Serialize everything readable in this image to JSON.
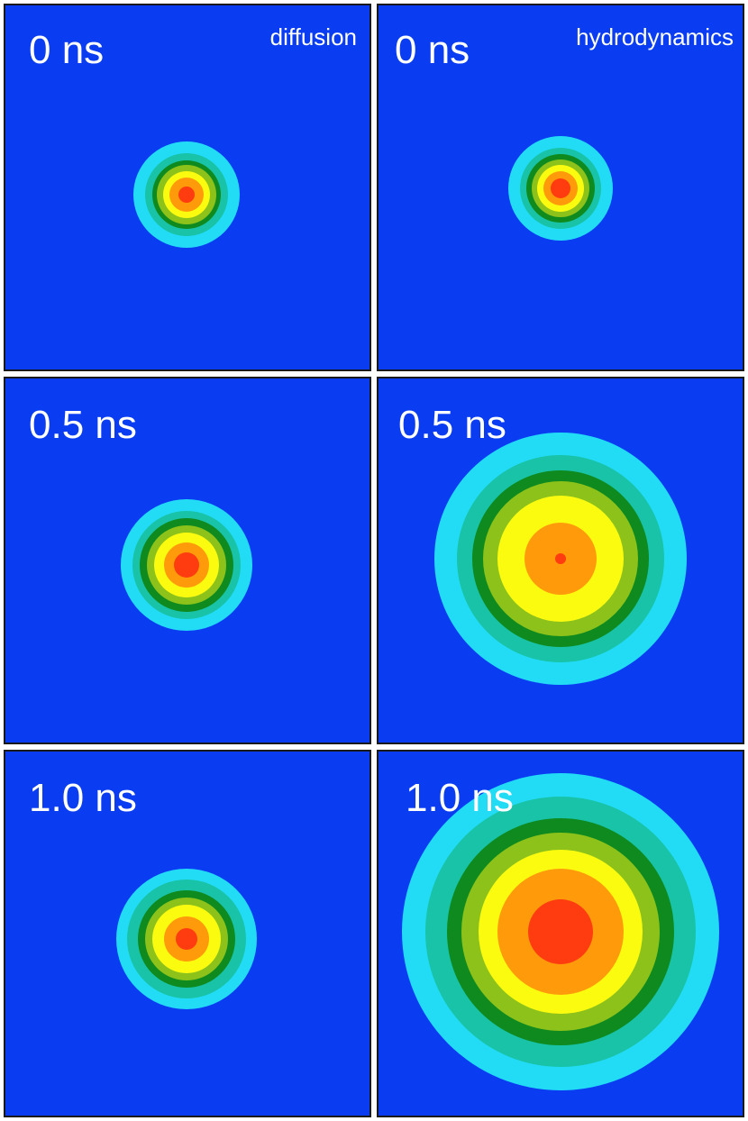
{
  "columns": {
    "diffusion": "diffusion",
    "hydrodynamics": "hydrodynamics"
  },
  "colors": {
    "background": "#0a3cf2",
    "cyan": "#22dcf6",
    "teal": "#18c3a8",
    "dark_green": "#0e8a1e",
    "yellow_green": "#8cc21a",
    "yellow": "#fbfb10",
    "orange": "#ff9b0a",
    "red": "#ff3c10"
  },
  "panels": [
    {
      "id": "p-0-0",
      "time": "0 ns"
    },
    {
      "id": "p-0-1",
      "time": "0 ns"
    },
    {
      "id": "p-1-0",
      "time": "0.5 ns"
    },
    {
      "id": "p-1-1",
      "time": "0.5 ns"
    },
    {
      "id": "p-2-0",
      "time": "1.0 ns"
    },
    {
      "id": "p-2-1",
      "time": "1.0 ns"
    }
  ]
}
